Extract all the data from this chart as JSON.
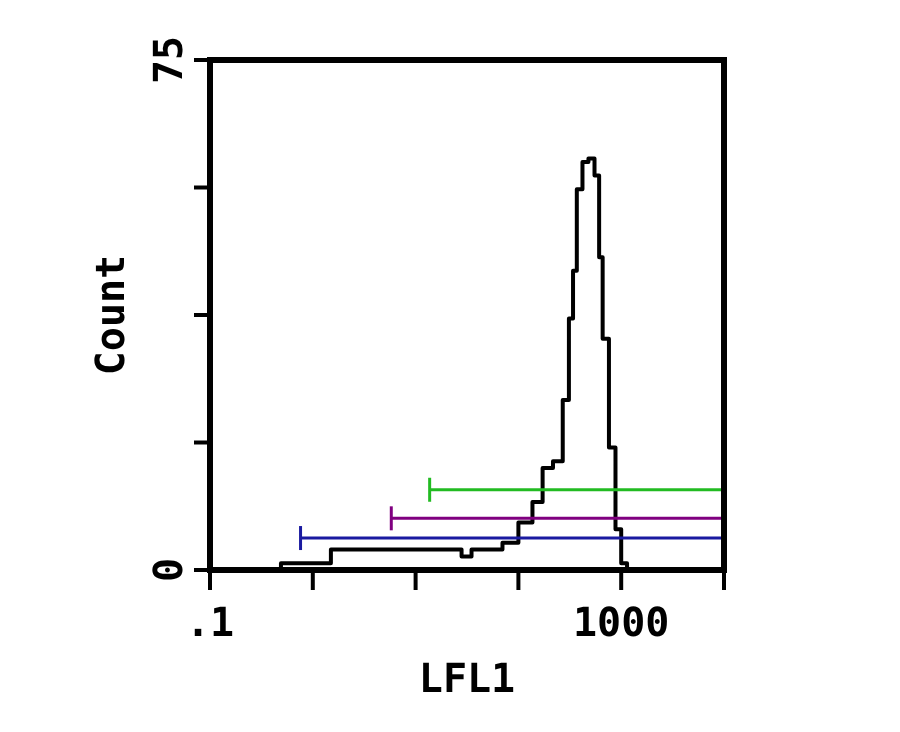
{
  "chart_data": {
    "type": "line",
    "xlabel": "LFL1",
    "ylabel": "Count",
    "log": "x",
    "xlim": [
      0.1,
      10000
    ],
    "ylim": [
      0,
      75
    ],
    "xticks": [
      {
        "value": 0.1,
        "label": ".1"
      },
      {
        "value": 1,
        "label": null
      },
      {
        "value": 10,
        "label": null
      },
      {
        "value": 100,
        "label": null
      },
      {
        "value": 1000,
        "label": "1000"
      },
      {
        "value": 10000,
        "label": null
      }
    ],
    "yticks": [
      0,
      {
        "value": 18.75,
        "label": null
      },
      {
        "value": 37.5,
        "label": null
      },
      {
        "value": 56.25,
        "label": null
      },
      75
    ],
    "grid": false,
    "marker": "none",
    "line_style": "solid",
    "series": [
      {
        "type": "step",
        "color": "#000000",
        "x": [
          0.1,
          0.31,
          0.49,
          1.2,
          1.5,
          7.3,
          28,
          35,
          44,
          70,
          100,
          137,
          172,
          217,
          270,
          310,
          340,
          370,
          420,
          480,
          550,
          610,
          660,
          760,
          880,
          1000,
          1140,
          10000
        ],
        "values": [
          0,
          0,
          1,
          1,
          3,
          3,
          2,
          3,
          3,
          4,
          7,
          10,
          15,
          16,
          25,
          37,
          44,
          56,
          60,
          60.5,
          58,
          46,
          34,
          18,
          6,
          1,
          0,
          0
        ]
      },
      {
        "color": "#1a1aa0",
        "x": [
          0.76,
          10000
        ],
        "values": [
          4.7,
          4.7
        ]
      },
      {
        "color": "#800080",
        "x": [
          5.8,
          10000
        ],
        "values": [
          7.6,
          7.6
        ]
      },
      {
        "color": "#22bb22",
        "x": [
          13.7,
          10000
        ],
        "values": [
          11.8,
          11.8
        ]
      }
    ]
  }
}
